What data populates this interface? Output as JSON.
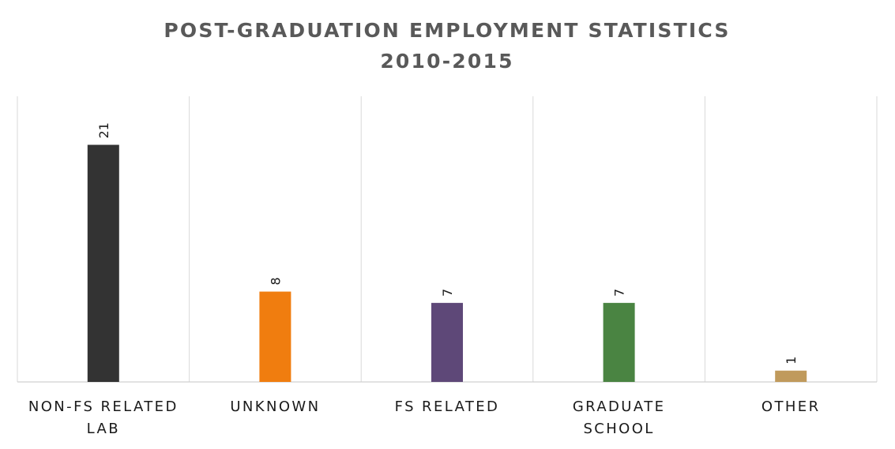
{
  "chart_data": {
    "type": "bar",
    "title": "POST-GRADUATION EMPLOYMENT STATISTICS",
    "subtitle": "2010-2015",
    "categories": [
      [
        "NON-FS RELATED",
        "LAB"
      ],
      [
        "UNKNOWN"
      ],
      [
        "FS RELATED"
      ],
      [
        "GRADUATE",
        "SCHOOL"
      ],
      [
        "OTHER"
      ]
    ],
    "values": [
      21,
      8,
      7,
      7,
      1
    ],
    "bar_colors": [
      "#333333",
      "#f07d0f",
      "#5e4878",
      "#4a8442",
      "#c09a5c"
    ],
    "data_labels": [
      "21",
      "8",
      "7",
      "7",
      "1"
    ],
    "ylim": [
      0,
      25.3
    ],
    "xlabel": "",
    "ylabel": "",
    "grid": "vertical",
    "legend": "none"
  }
}
